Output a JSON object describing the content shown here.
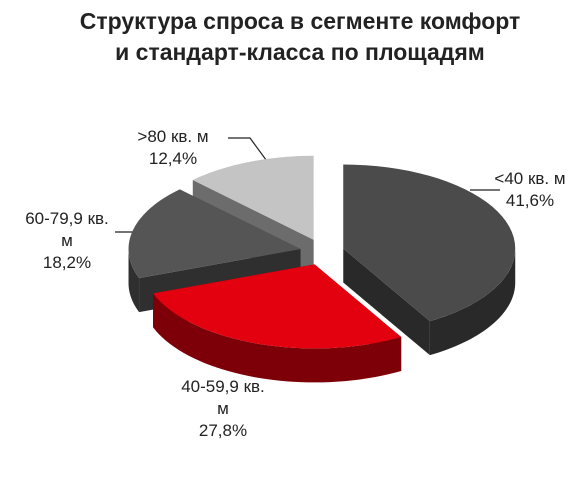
{
  "chart_data": {
    "type": "pie3d",
    "title": "Структура  спроса в сегменте комфорт и стандарт-класса по площадям",
    "categories": [
      "<40 кв. м",
      "40-59,9 кв. м",
      "60-79,9 кв. м",
      ">80 кв. м"
    ],
    "values": [
      41.6,
      27.8,
      18.2,
      12.4
    ],
    "value_labels": [
      "41,6%",
      "27,8%",
      "18,2%",
      "12,4%"
    ],
    "colors": [
      "#4b4b4b",
      "#e3000f",
      "#555555",
      "#c4c4c4"
    ]
  }
}
